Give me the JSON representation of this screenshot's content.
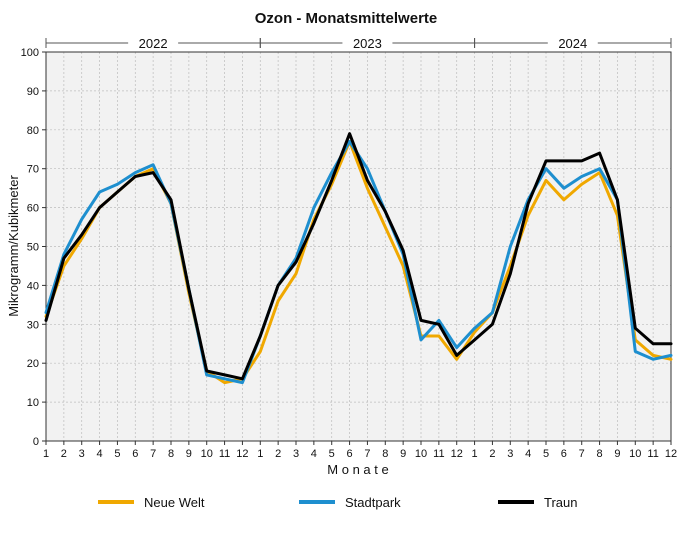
{
  "chart_data": {
    "type": "line",
    "title": "Ozon - Monatsmittelwerte",
    "xlabel": "M o n a t e",
    "ylabel": "Mikrogramm/Kubikmeter",
    "ylim": [
      0,
      100
    ],
    "yticks": [
      "0",
      "10",
      "20",
      "30",
      "40",
      "50",
      "60",
      "70",
      "80",
      "90",
      "100"
    ],
    "grid": true,
    "legend_position": "bottom",
    "years": [
      "2022",
      "2023",
      "2024"
    ],
    "categories": [
      "1",
      "2",
      "3",
      "4",
      "5",
      "6",
      "7",
      "8",
      "9",
      "10",
      "11",
      "12",
      "1",
      "2",
      "3",
      "4",
      "5",
      "6",
      "7",
      "8",
      "9",
      "10",
      "11",
      "12",
      "1",
      "2",
      "3",
      "4",
      "5",
      "6",
      "7",
      "8",
      "9",
      "10",
      "11",
      "12"
    ],
    "series": [
      {
        "name": "Neue Welt",
        "color": "#f0a800",
        "values": [
          32,
          45,
          52,
          60,
          64,
          68,
          70,
          61,
          38,
          18,
          15,
          16,
          23,
          36,
          43,
          57,
          66,
          77,
          65,
          55,
          45,
          27,
          27,
          21,
          28,
          33,
          45,
          58,
          67,
          62,
          66,
          69,
          58,
          26,
          22,
          21
        ]
      },
      {
        "name": "Stadtpark",
        "color": "#1e8fcf",
        "values": [
          33,
          48,
          57,
          64,
          66,
          69,
          71,
          61,
          39,
          17,
          16,
          15,
          27,
          40,
          47,
          60,
          69,
          77,
          70,
          59,
          48,
          26,
          31,
          24,
          29,
          33,
          50,
          62,
          70,
          65,
          68,
          70,
          62,
          23,
          21,
          22
        ]
      },
      {
        "name": "Traun",
        "color": "#000000",
        "values": [
          31,
          47,
          53,
          60,
          64,
          68,
          69,
          62,
          39,
          18,
          17,
          16,
          27,
          40,
          46,
          56,
          67,
          79,
          67,
          59,
          49,
          31,
          30,
          22,
          26,
          30,
          43,
          61,
          72,
          72,
          72,
          74,
          62,
          29,
          25,
          25
        ]
      }
    ]
  }
}
